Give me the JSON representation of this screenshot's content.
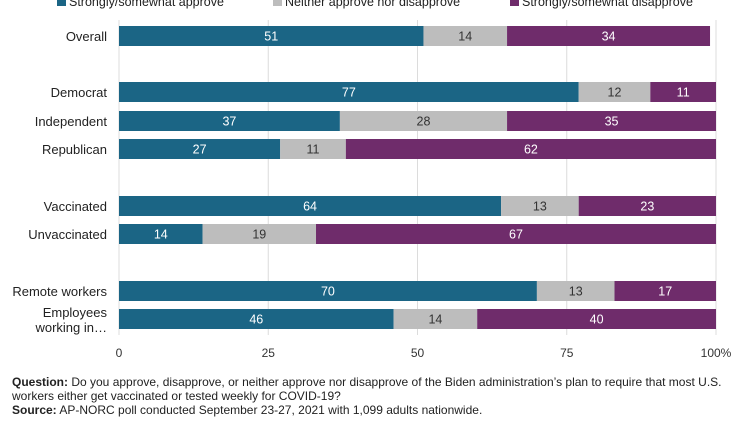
{
  "chart_data": {
    "type": "bar",
    "orientation": "horizontal",
    "stacked": true,
    "categories": [
      "Overall",
      "Democrat",
      "Independent",
      "Republican",
      "Vaccinated",
      "Unvaccinated",
      "Remote workers",
      "Employees working in…"
    ],
    "series": [
      {
        "name": "Strongly/somewhat approve",
        "color": "#1b6585",
        "values": [
          51,
          77,
          37,
          27,
          64,
          14,
          70,
          46
        ]
      },
      {
        "name": "Neither approve nor disapprove",
        "color": "#bdbdbd",
        "values": [
          14,
          12,
          28,
          11,
          13,
          19,
          13,
          14
        ]
      },
      {
        "name": "Strongly/somewhat disapprove",
        "color": "#6f2c6b",
        "values": [
          34,
          11,
          35,
          62,
          23,
          67,
          17,
          40
        ]
      }
    ],
    "xlim": [
      0,
      100
    ],
    "xticks": [
      "0",
      "25",
      "50",
      "75",
      "100%"
    ],
    "grid": true,
    "legend_position": "top"
  },
  "footnote": {
    "question_label": "Question:",
    "question_text": " Do you approve, disapprove, or neither approve nor disapprove of the Biden administration’s plan to require that most U.S. workers either get vaccinated or tested weekly for COVID-19?",
    "source_label": "Source:",
    "source_text": " AP-NORC poll conducted September 23-27, 2021 with 1,099 adults nationwide."
  }
}
